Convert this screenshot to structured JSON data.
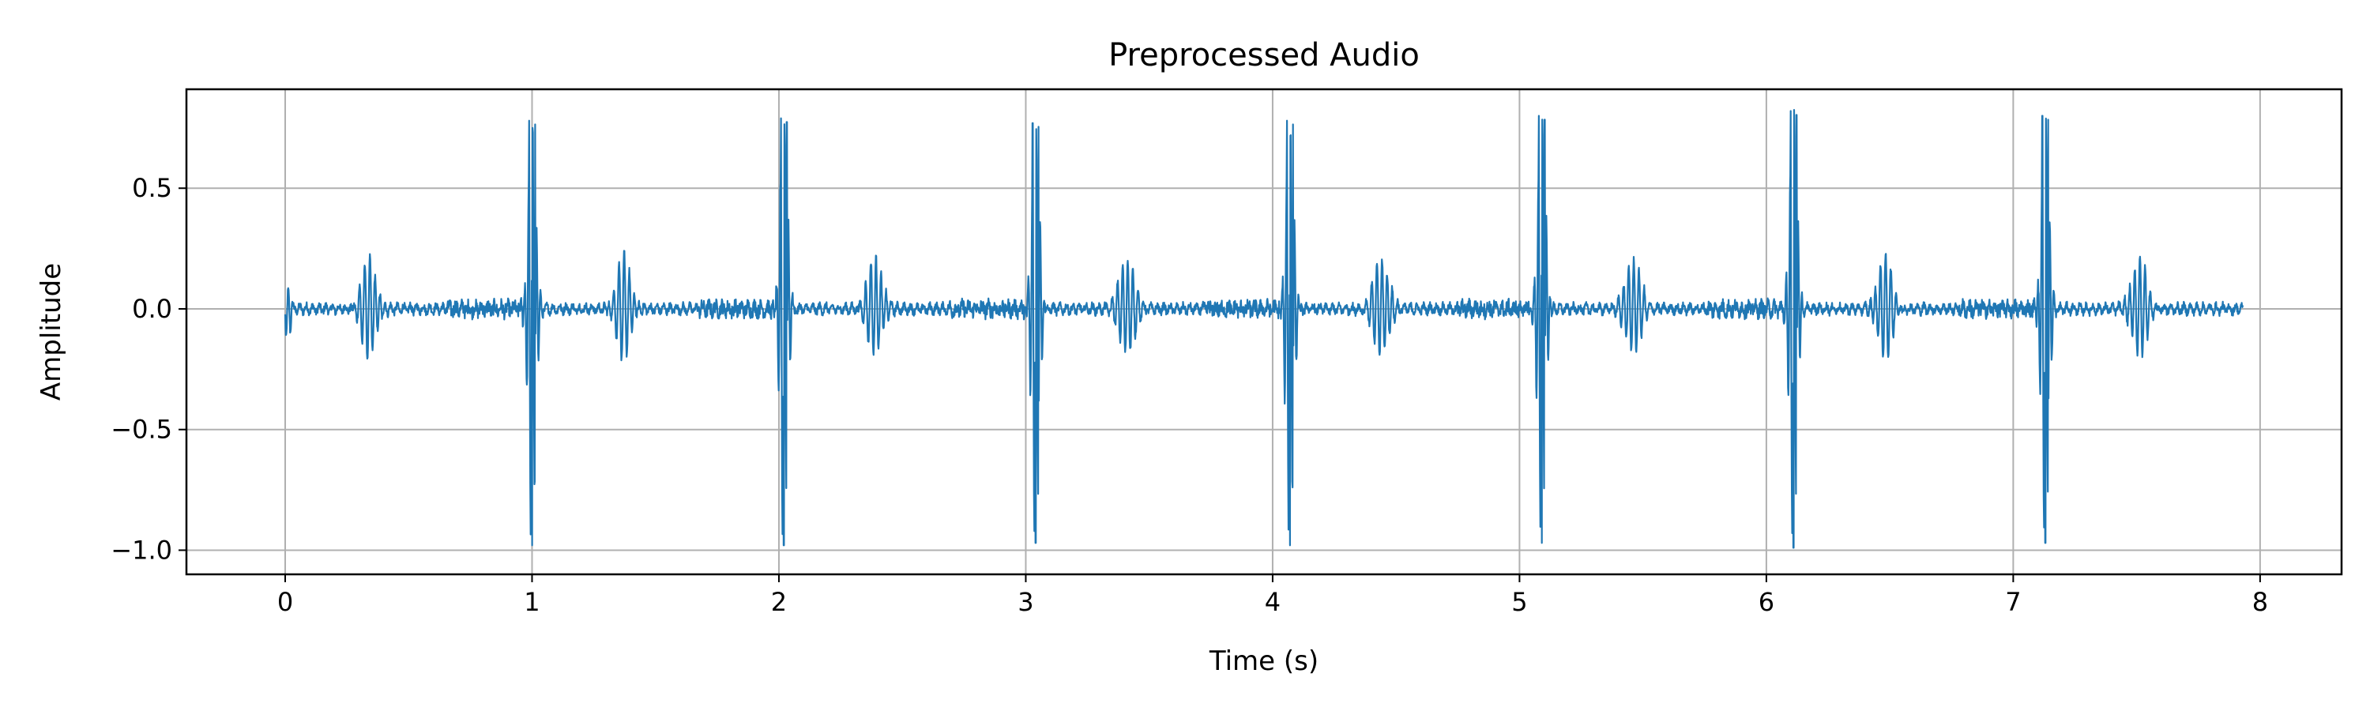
{
  "chart_data": {
    "type": "line",
    "title": "Preprocessed Audio",
    "xlabel": "Time (s)",
    "ylabel": "Amplitude",
    "xlim": [
      -0.4,
      8.33
    ],
    "ylim": [
      -1.1,
      0.91
    ],
    "x_ticks": [
      0,
      1,
      2,
      3,
      4,
      5,
      6,
      7,
      8
    ],
    "x_tick_labels": [
      "0",
      "1",
      "2",
      "3",
      "4",
      "5",
      "6",
      "7",
      "8"
    ],
    "y_ticks": [
      -1.0,
      -0.5,
      0.0,
      0.5
    ],
    "y_tick_labels": [
      "−1.0",
      "−0.5",
      "0.0",
      "0.5"
    ],
    "grid": true,
    "legend": "none",
    "line_color": "#1f77b4",
    "series": [
      {
        "duration_s": 7.93,
        "beats_s1": [
          {
            "t": 1.0,
            "max": 0.78,
            "min": -0.98
          },
          {
            "t": 2.02,
            "max": 0.79,
            "min": -0.98
          },
          {
            "t": 3.04,
            "max": 0.77,
            "min": -0.97
          },
          {
            "t": 4.07,
            "max": 0.78,
            "min": -0.98
          },
          {
            "t": 5.09,
            "max": 0.8,
            "min": -0.97
          },
          {
            "t": 6.11,
            "max": 0.82,
            "min": -0.99
          },
          {
            "t": 7.13,
            "max": 0.8,
            "min": -0.97
          }
        ],
        "beats_s2": [
          {
            "t": 0.34,
            "max": 0.21,
            "min": -0.2
          },
          {
            "t": 1.37,
            "max": 0.22,
            "min": -0.2
          },
          {
            "t": 2.39,
            "max": 0.22,
            "min": -0.19
          },
          {
            "t": 3.41,
            "max": 0.22,
            "min": -0.2
          },
          {
            "t": 4.44,
            "max": 0.22,
            "min": -0.2
          },
          {
            "t": 5.46,
            "max": 0.22,
            "min": -0.19
          },
          {
            "t": 6.48,
            "max": 0.22,
            "min": -0.2
          },
          {
            "t": 7.51,
            "max": 0.22,
            "min": -0.2
          }
        ],
        "baseline_noise": 0.03,
        "onset": {
          "t": 0.0,
          "max": 0.08,
          "min": -0.16
        }
      }
    ]
  }
}
